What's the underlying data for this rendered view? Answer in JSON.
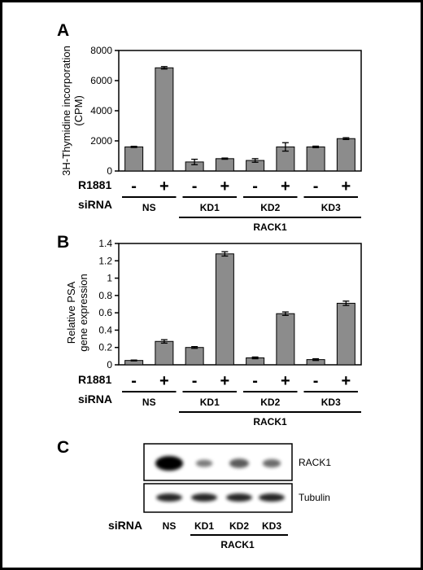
{
  "panels": {
    "a": {
      "letter": "A",
      "row1_label": "R1881",
      "row2_label": "siRNA",
      "group_label": "RACK1"
    },
    "b": {
      "letter": "B",
      "row1_label": "R1881",
      "row2_label": "siRNA",
      "group_label": "RACK1"
    },
    "c": {
      "letter": "C",
      "band_labels": [
        "RACK1",
        "Tubulin"
      ],
      "siRNA_label": "siRNA",
      "lanes": [
        "NS",
        "KD1",
        "KD2",
        "KD3"
      ],
      "group_label": "RACK1",
      "band_intensity": {
        "RACK1": [
          1.0,
          0.25,
          0.45,
          0.35
        ],
        "Tubulin": [
          1.0,
          1.0,
          1.0,
          1.0
        ]
      }
    }
  },
  "chart_data": [
    {
      "type": "bar",
      "panel": "A",
      "ylabel": "3H-Thymidine incorporation (CPM)",
      "ylabel_lines": [
        "3H-Thymidine incorporation",
        "(CPM)"
      ],
      "ylim": [
        0,
        8000
      ],
      "yticks": [
        "0",
        "2000",
        "4000",
        "6000",
        "8000"
      ],
      "r1881": [
        "-",
        "+",
        "-",
        "+",
        "-",
        "+",
        "-",
        "+"
      ],
      "groups": [
        "NS",
        "KD1",
        "KD2",
        "KD3"
      ],
      "values": [
        1600,
        6850,
        600,
        820,
        700,
        1600,
        1600,
        2150
      ],
      "errors": [
        40,
        80,
        180,
        40,
        120,
        280,
        50,
        60
      ],
      "bar_color": "#8c8c8c"
    },
    {
      "type": "bar",
      "panel": "B",
      "ylabel": "Relative PSA gene expression",
      "ylabel_lines": [
        "Relative PSA",
        "gene expression"
      ],
      "ylim": [
        0,
        1.4
      ],
      "yticks": [
        "0",
        "0.2",
        "0.4",
        "0.6",
        "0.8",
        "1",
        "1.2",
        "1.4"
      ],
      "r1881": [
        "-",
        "+",
        "-",
        "+",
        "-",
        "+",
        "-",
        "+"
      ],
      "groups": [
        "NS",
        "KD1",
        "KD2",
        "KD3"
      ],
      "values": [
        0.05,
        0.27,
        0.2,
        1.28,
        0.08,
        0.59,
        0.06,
        0.71
      ],
      "errors": [
        0.005,
        0.02,
        0.01,
        0.025,
        0.01,
        0.02,
        0.01,
        0.025
      ],
      "bar_color": "#8c8c8c"
    }
  ]
}
